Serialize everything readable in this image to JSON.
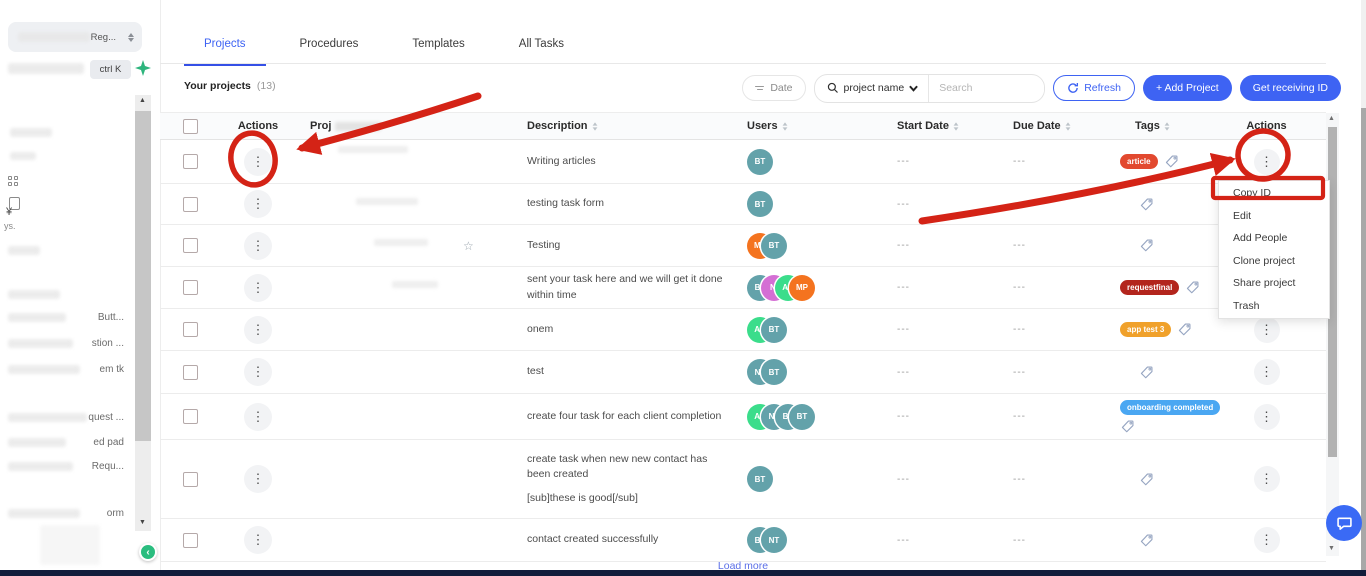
{
  "app": {
    "accent_color": "#3e63f3",
    "annotation_color": "#d42316",
    "load_more": "Load more"
  },
  "icons": {
    "filter": "filter-lines",
    "search": "magnifier",
    "chevron_down": "chevron",
    "refresh": "circular-arrow",
    "sparkle": "four-point-star",
    "tag": "tag-outline",
    "dots": "vertical-ellipsis",
    "chat": "speech-bubble",
    "star": "star-outline",
    "collapse": "chevron-left"
  },
  "sidebar": {
    "workspace_fragment": "Reg...",
    "shortcut": "ctrl K",
    "symbols": [
      "¥",
      "ys."
    ],
    "fragments": [
      {
        "text": "Butt..."
      },
      {
        "text": "stion ..."
      },
      {
        "text": "em tk"
      },
      {
        "text": "quest ..."
      },
      {
        "text": "ed pad"
      },
      {
        "text": "Requ..."
      },
      {
        "text": "orm"
      }
    ]
  },
  "tabs": [
    {
      "label": "Projects",
      "active": true
    },
    {
      "label": "Procedures",
      "active": false
    },
    {
      "label": "Templates",
      "active": false
    },
    {
      "label": "All Tasks",
      "active": false
    }
  ],
  "toolbar": {
    "your_projects": "Your projects",
    "count": "(13)",
    "date_label": "Date",
    "search_category": "project name",
    "search_placeholder": "Search",
    "refresh": "Refresh",
    "add_project": "+ Add Project",
    "get_receiving_id": "Get receiving ID"
  },
  "table": {
    "headers": [
      {
        "label": "Actions",
        "sortable": false,
        "align": "center"
      },
      {
        "label": "Proj",
        "sortable": false,
        "redacted": true
      },
      {
        "label": "Description",
        "sortable": true
      },
      {
        "label": "Users",
        "sortable": true
      },
      {
        "label": "Start Date",
        "sortable": true
      },
      {
        "label": "Due Date",
        "sortable": true
      },
      {
        "label": "Tags",
        "sortable": true,
        "pad": 20
      },
      {
        "label": "Actions",
        "sortable": false,
        "align": "center2"
      }
    ],
    "rows": [
      {
        "description": [
          "Writing articles"
        ],
        "users": [
          {
            "initials": "BT",
            "color": "#63a2aa"
          }
        ],
        "start": "---",
        "due": "---",
        "tags": [
          {
            "label": "article",
            "color": "#e2492f"
          }
        ],
        "tag_icon": true
      },
      {
        "description": [
          "testing task form"
        ],
        "users": [
          {
            "initials": "BT",
            "color": "#63a2aa"
          }
        ],
        "start": "---",
        "due": "---",
        "tags": [],
        "tag_icon": true
      },
      {
        "description": [
          "Testing"
        ],
        "users": [
          {
            "initials": "MP",
            "color": "#f4731f"
          },
          {
            "initials": "BT",
            "color": "#63a2aa"
          }
        ],
        "start": "---",
        "due": "---",
        "tags": [],
        "tag_icon": true,
        "star": true
      },
      {
        "description": [
          "sent your task here and we will get it done within time"
        ],
        "users": [
          {
            "initials": "BT",
            "color": "#63a2aa"
          },
          {
            "initials": "NI",
            "color": "#d46fd4"
          },
          {
            "initials": "AN",
            "color": "#3bdd8b"
          },
          {
            "initials": "MP",
            "color": "#f4731f"
          }
        ],
        "start": "---",
        "due": "---",
        "tags": [
          {
            "label": "requestfinal",
            "color": "#b3251d"
          }
        ],
        "tag_icon": true
      },
      {
        "description": [
          "onem"
        ],
        "users": [
          {
            "initials": "AN",
            "color": "#3bdd8b"
          },
          {
            "initials": "BT",
            "color": "#63a2aa"
          }
        ],
        "start": "---",
        "due": "---",
        "tags": [
          {
            "label": "app test 3",
            "color": "#f0a12b"
          }
        ],
        "tag_icon": true
      },
      {
        "description": [
          "test"
        ],
        "users": [
          {
            "initials": "NT",
            "color": "#63a2aa"
          },
          {
            "initials": "BT",
            "color": "#63a2aa"
          }
        ],
        "start": "---",
        "due": "---",
        "tags": [],
        "tag_icon": true
      },
      {
        "description": [
          "create four task for each client completion"
        ],
        "users": [
          {
            "initials": "AN",
            "color": "#3bdd8b"
          },
          {
            "initials": "NT",
            "color": "#63a2aa"
          },
          {
            "initials": "BT",
            "color": "#63a2aa"
          },
          {
            "initials": "BT",
            "color": "#63a2aa"
          }
        ],
        "start": "---",
        "due": "---",
        "tags": [
          {
            "label": "onboarding completed",
            "color": "#4aa7f2"
          }
        ],
        "tag_icon": true
      },
      {
        "description": [
          "create task when new new contact has been created",
          "[sub]these is good[/sub]"
        ],
        "users": [
          {
            "initials": "BT",
            "color": "#63a2aa"
          }
        ],
        "start": "---",
        "due": "---",
        "tags": [],
        "tag_icon": true
      },
      {
        "description": [
          "contact created successfully"
        ],
        "users": [
          {
            "initials": "BT",
            "color": "#63a2aa"
          },
          {
            "initials": "NT",
            "color": "#63a2aa"
          }
        ],
        "start": "---",
        "due": "---",
        "tags": [],
        "tag_icon": true
      }
    ]
  },
  "context_menu": {
    "items": [
      "Copy ID",
      "Edit",
      "Add People",
      "Clone project",
      "Share project",
      "Trash"
    ],
    "highlighted": "Copy ID"
  }
}
